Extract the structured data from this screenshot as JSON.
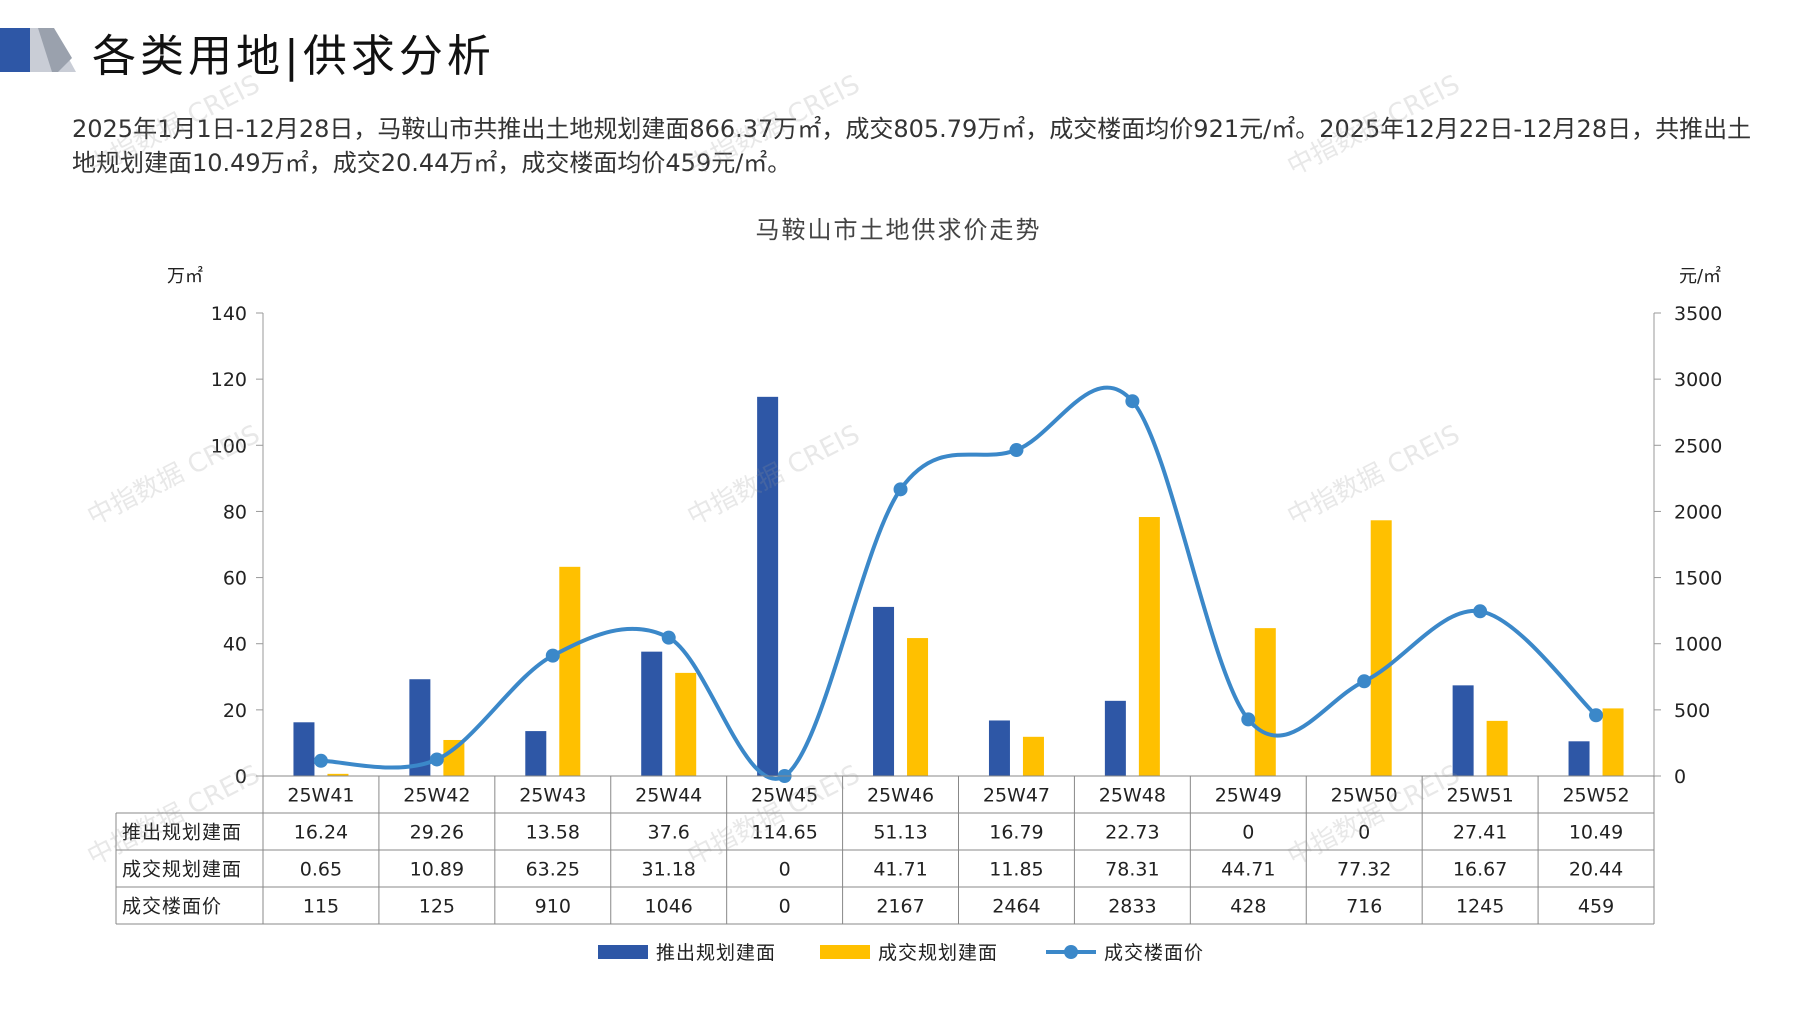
{
  "header": {
    "title": "各类用地|供求分析"
  },
  "summary": {
    "text": "2025年1月1日-12月28日，马鞍山市共推出土地规划建面866.37万㎡，成交805.79万㎡，成交楼面均价921元/㎡。2025年12月22日-12月28日，共推出土地规划建面10.49万㎡，成交20.44万㎡，成交楼面均价459元/㎡。"
  },
  "watermark": "中指数据 CREIS",
  "colors": {
    "bar_supply": "#2e57a6",
    "bar_deal": "#ffc000",
    "line_price": "#3b88c9"
  },
  "chart_data": {
    "type": "bar",
    "title": "马鞍山市土地供求价走势",
    "y_left_unit": "万㎡",
    "y_right_unit": "元/㎡",
    "y_left_ticks": [
      "0",
      "20",
      "40",
      "60",
      "80",
      "100",
      "120",
      "140"
    ],
    "y_right_ticks": [
      "0",
      "500",
      "1000",
      "1500",
      "2000",
      "2500",
      "3000",
      "3500"
    ],
    "ylim_left": [
      0,
      140
    ],
    "ylim_right": [
      0,
      3500
    ],
    "categories": [
      "25W41",
      "25W42",
      "25W43",
      "25W44",
      "25W45",
      "25W46",
      "25W47",
      "25W48",
      "25W49",
      "25W50",
      "25W51",
      "25W52"
    ],
    "series": [
      {
        "name": "推出规划建面",
        "kind": "bar",
        "axis": "left",
        "values": [
          16.24,
          29.26,
          13.58,
          37.6,
          114.65,
          51.13,
          16.79,
          22.73,
          0,
          0,
          27.41,
          10.49
        ],
        "labels": [
          "16.24",
          "29.26",
          "13.58",
          "37.6",
          "114.65",
          "51.13",
          "16.79",
          "22.73",
          "0",
          "0",
          "27.41",
          "10.49"
        ]
      },
      {
        "name": "成交规划建面",
        "kind": "bar",
        "axis": "left",
        "values": [
          0.65,
          10.89,
          63.25,
          31.18,
          0,
          41.71,
          11.85,
          78.31,
          44.71,
          77.32,
          16.67,
          20.44
        ],
        "labels": [
          "0.65",
          "10.89",
          "63.25",
          "31.18",
          "0",
          "41.71",
          "11.85",
          "78.31",
          "44.71",
          "77.32",
          "16.67",
          "20.44"
        ]
      },
      {
        "name": "成交楼面价",
        "kind": "line",
        "axis": "right",
        "values": [
          115,
          125,
          910,
          1046,
          0,
          2167,
          2464,
          2833,
          428,
          716,
          1245,
          459
        ],
        "labels": [
          "115",
          "125",
          "910",
          "1046",
          "0",
          "2167",
          "2464",
          "2833",
          "428",
          "716",
          "1245",
          "459"
        ]
      }
    ],
    "legend_position": "bottom",
    "data_table": true
  }
}
